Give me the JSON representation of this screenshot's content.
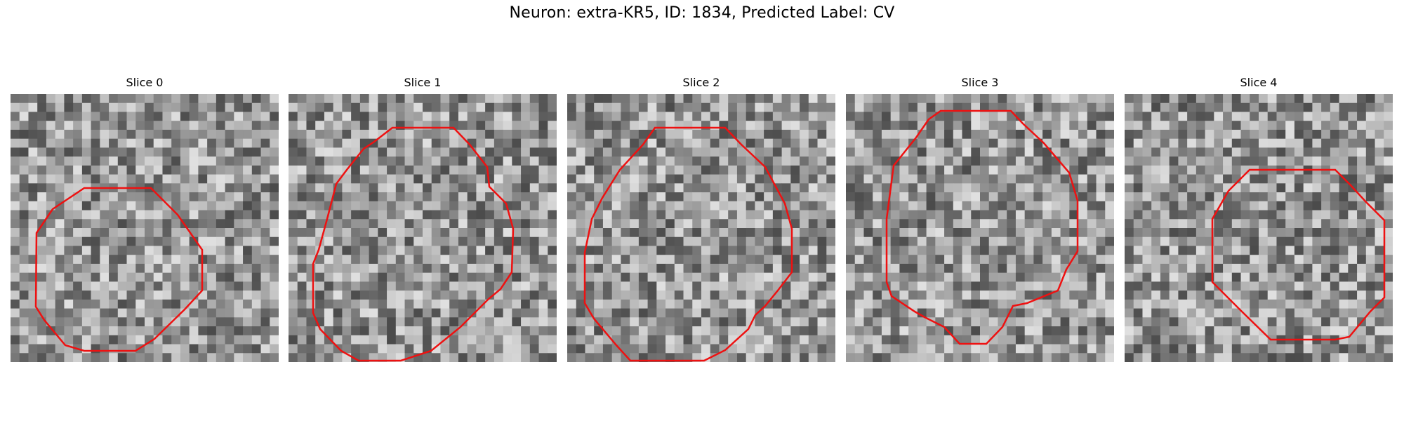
{
  "figure": {
    "title": "Neuron: extra-KR5, ID: 1834, Predicted Label: CV"
  },
  "panels": [
    {
      "title": "Slice 0"
    },
    {
      "title": "Slice 1"
    },
    {
      "title": "Slice 2"
    },
    {
      "title": "Slice 3"
    },
    {
      "title": "Slice 4"
    }
  ],
  "style": {
    "contour_color": "#ee1111",
    "colormap": "grayscale"
  }
}
